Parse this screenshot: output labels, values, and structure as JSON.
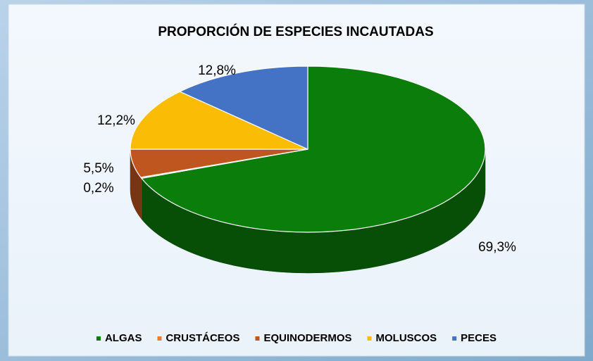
{
  "chart_data": {
    "type": "pie",
    "title": "PROPORCIÓN DE ESPECIES INCAUTADAS",
    "categories": [
      "ALGAS",
      "CRUSTÁCEOS",
      "EQUINODERMOS",
      "MOLUSCOS",
      "PECES"
    ],
    "values": [
      69.3,
      0.2,
      5.5,
      12.2,
      12.8
    ],
    "value_labels": [
      "69,3%",
      "0,2%",
      "5,5%",
      "12,2%",
      "12,8%"
    ],
    "colors": [
      "#0b7d0b",
      "#ed7d31",
      "#c0561f",
      "#fbbc05",
      "#4472c4"
    ],
    "legend": "bottom"
  }
}
